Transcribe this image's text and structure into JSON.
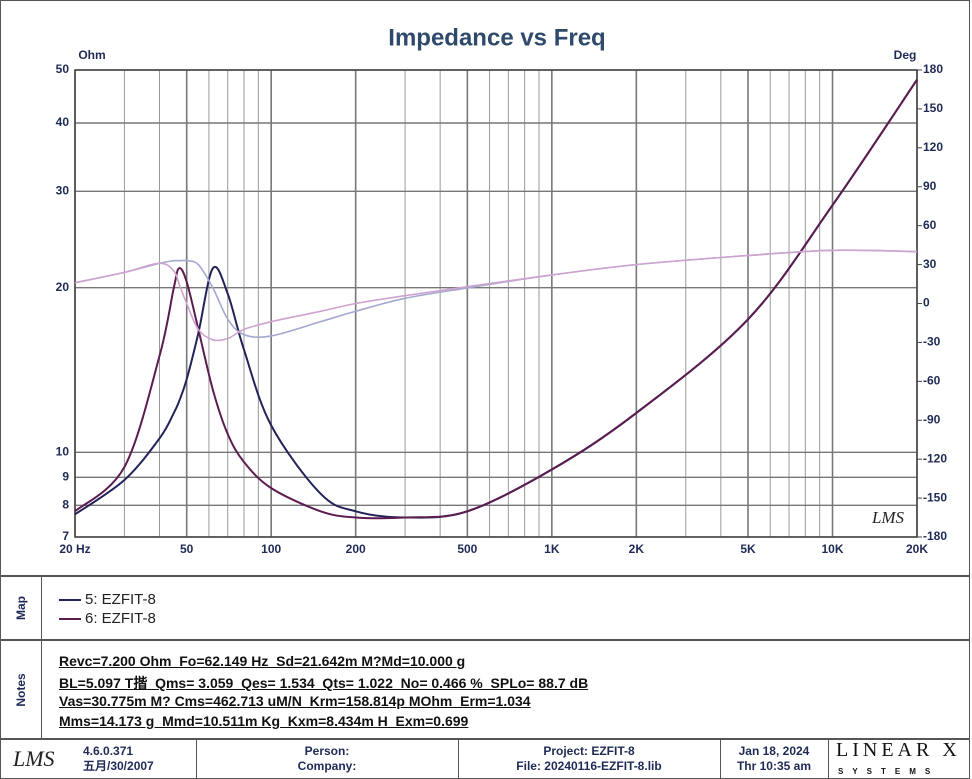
{
  "chart_data": {
    "type": "line",
    "title": "Impedance vs Freq",
    "ylabel": "Ohm",
    "y2label": "Deg",
    "watermark": "LMS",
    "x": [
      20,
      30,
      40,
      45,
      47,
      50,
      55,
      62,
      70,
      80,
      100,
      150,
      200,
      300,
      500,
      1000,
      2000,
      5000,
      10000,
      20000
    ],
    "series": [
      {
        "name": "5: EZFIT-8",
        "color": "#23235a",
        "values": [
          7.7,
          8.9,
          10.6,
          11.8,
          12.4,
          13.6,
          16.5,
          21.7,
          19.5,
          15.4,
          11.2,
          8.4,
          7.8,
          7.6,
          7.8,
          9.3,
          11.8,
          17.5,
          28.3,
          48
        ]
      },
      {
        "name": "6: EZFIT-8",
        "color": "#5b1d4f",
        "values": [
          7.8,
          9.4,
          15.0,
          20.0,
          21.7,
          20.5,
          16.8,
          13.0,
          10.8,
          9.6,
          8.6,
          7.8,
          7.6,
          7.6,
          7.8,
          9.3,
          11.8,
          17.5,
          28.3,
          48
        ]
      },
      {
        "color": "#a3a8cf",
        "axis": "y2",
        "values": [
          16,
          24,
          31,
          33,
          33,
          33,
          30,
          12,
          -12,
          -24,
          -25,
          -14,
          -6,
          4,
          12,
          22,
          30,
          37,
          41,
          40
        ]
      },
      {
        "color": "#cfa3cf",
        "axis": "y2",
        "values": [
          16,
          24,
          31,
          25,
          15,
          0,
          -20,
          -28,
          -27,
          -20,
          -14,
          -6,
          0,
          6,
          13,
          22,
          30,
          37,
          41,
          40
        ]
      }
    ],
    "xscale": "log",
    "yscale": "log",
    "xlim": [
      20,
      20000
    ],
    "xticks": [
      {
        "value": 20,
        "label": "20 Hz"
      },
      50,
      100,
      200,
      500,
      {
        "value": 1000,
        "label": "1K"
      },
      {
        "value": 2000,
        "label": "2K"
      },
      {
        "value": 5000,
        "label": "5K"
      },
      {
        "value": 10000,
        "label": "10K"
      },
      {
        "value": 20000,
        "label": "20K"
      }
    ],
    "xgrid": [
      30,
      40,
      60,
      70,
      80,
      90,
      300,
      400,
      600,
      700,
      800,
      900,
      3000,
      4000,
      6000,
      7000,
      8000,
      9000
    ],
    "ylim": [
      7,
      50
    ],
    "yticks": [
      7,
      8,
      9,
      10,
      20,
      30,
      40,
      50
    ],
    "y2lim": [
      -180,
      180
    ],
    "y2ticks": [
      -180,
      -150,
      -120,
      -90,
      -60,
      -30,
      0,
      30,
      60,
      90,
      120,
      150,
      180
    ],
    "grid": true
  },
  "map": {
    "label": "Map"
  },
  "notes": {
    "label": "Notes",
    "lines": [
      "Revc=7.200 Ohm  Fo=62.149 Hz  Sd=21.642m M?Md=10.000 g",
      "BL=5.097 T揩  Qms= 3.059  Qes= 1.534  Qts= 1.022  No= 0.466 %  SPLo= 88.7 dB",
      "Vas=30.775m M? Cms=462.713 uM/N  Krm=158.814p MOhm  Erm=1.034",
      "Mms=14.173 g  Mmd=10.511m Kg  Kxm=8.434m H  Exm=0.699"
    ]
  },
  "footer": {
    "logo": "LMS",
    "version": "4.6.0.371",
    "date": "五月/30/2007",
    "person": "Person:",
    "company": "Company:",
    "project": "Project: EZFIT-8",
    "file": "File: 20240116-EZFIT-8.lib",
    "run_date": "Jan 18, 2024",
    "run_time": "Thr 10:35 am",
    "brand": "LINEAR X",
    "brand_sub": "SYSTEMS"
  }
}
